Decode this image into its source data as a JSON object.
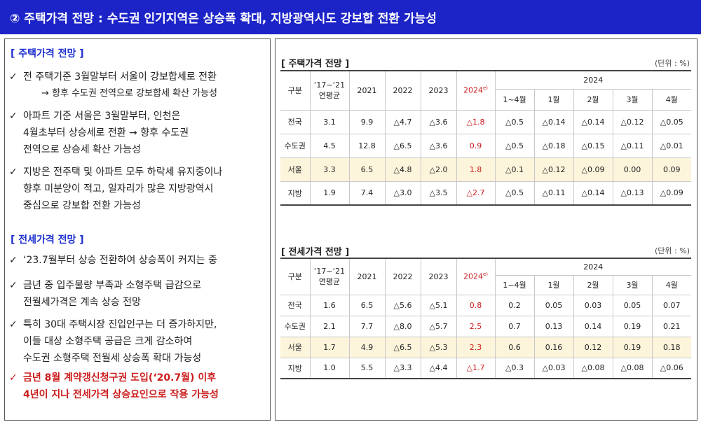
{
  "title": "② 주택가격 전망 : 수도권 인기지역은 상승폭 확대, 지방광역시도 강보합 전환 가능성",
  "left": {
    "housing_head": "[ 주택가격 전망 ]",
    "housing_bullets": [
      {
        "check": "✓",
        "l1": "전 주택기준 3월말부터 서울이 강보합세로 전환",
        "l2": "→ 향후 수도권 전역으로 강보합세 확산 가능성"
      },
      {
        "check": "✓",
        "l1": "아파트 기준 서울은 3월말부터, 인천은",
        "l2": "4월초부터 상승세로 전환  → 향후 수도권",
        "l3": "전역으로 상승세 확산 가능성"
      },
      {
        "check": "✓",
        "l1": "지방은 전주택 및 아파트 모두 하락세 유지중이나",
        "l2": "향후 미분양이 적고, 일자리가 많은 지방광역시",
        "l3": "중심으로 강보합 전환 가능성"
      }
    ],
    "jeonse_head": "[ 전세가격 전망 ]",
    "jeonse_bullets": [
      {
        "check": "✓",
        "l1": "‘23.7월부터 상승 전환하여 상승폭이 커지는 중"
      },
      {
        "check": "✓",
        "l1": "금년 중 입주물량 부족과 소형주택 급감으로",
        "l2": "전월세가격은 계속 상승 전망"
      },
      {
        "check": "✓",
        "l1": "특히 30대 주택시장 진입인구는 더 증가하지만,",
        "l2": "이들 대상 소형주택 공급은 크게 감소하여",
        "l3": "수도권 소형주택 전월세 상승폭 확대 가능성"
      },
      {
        "check": "✓",
        "l1": "금년 8월 계약갱신청구권 도입(‘20.7월) 이후",
        "l2": "4년이 지나 전세가격 상승요인으로 작용 가능성"
      }
    ]
  },
  "housing_table": {
    "title": "[ 주택가격 전망 ]",
    "unit": "(단위 : %)",
    "h_gubun": "구분",
    "h_avg_1": "‘17~‘21",
    "h_avg_2": "연평균",
    "h_2021": "2021",
    "h_2022": "2022",
    "h_2023": "2023",
    "h_2024e": "2024",
    "h_2024e_sup": "e)",
    "h_2024": "2024",
    "h_m14": "1~4월",
    "h_m1": "1월",
    "h_m2": "2월",
    "h_m3": "3월",
    "h_m4": "4월",
    "rows": [
      {
        "name": "전국",
        "avg": "3.1",
        "y2021": "9.9",
        "y2022": "△4.7",
        "y2023": "△3.6",
        "y2024e": "△1.8",
        "m14": "△0.5",
        "m1": "△0.14",
        "m2": "△0.14",
        "m3": "△0.12",
        "m4": "△0.05"
      },
      {
        "name": "수도권",
        "avg": "4.5",
        "y2021": "12.8",
        "y2022": "△6.5",
        "y2023": "△3.6",
        "y2024e": "0.9",
        "m14": "△0.5",
        "m1": "△0.18",
        "m2": "△0.15",
        "m3": "△0.11",
        "m4": "△0.01"
      },
      {
        "name": "서울",
        "avg": "3.3",
        "y2021": "6.5",
        "y2022": "△4.8",
        "y2023": "△2.0",
        "y2024e": "1.8",
        "m14": "△0.1",
        "m1": "△0.12",
        "m2": "△0.09",
        "m3": "0.00",
        "m4": "0.09"
      },
      {
        "name": "지방",
        "avg": "1.9",
        "y2021": "7.4",
        "y2022": "△3.0",
        "y2023": "△3.5",
        "y2024e": "△2.7",
        "m14": "△0.5",
        "m1": "△0.11",
        "m2": "△0.14",
        "m3": "△0.13",
        "m4": "△0.09"
      }
    ]
  },
  "jeonse_table": {
    "title": "[ 전세가격 전망 ]",
    "unit": "(단위 : %)",
    "h_gubun": "구분",
    "h_avg_1": "‘17~‘21",
    "h_avg_2": "연평균",
    "h_2021": "2021",
    "h_2022": "2022",
    "h_2023": "2023",
    "h_2024e": "2024",
    "h_2024e_sup": "e)",
    "h_2024": "2024",
    "h_m14": "1~4월",
    "h_m1": "1월",
    "h_m2": "2월",
    "h_m3": "3월",
    "h_m4": "4월",
    "rows": [
      {
        "name": "전국",
        "avg": "1.6",
        "y2021": "6.5",
        "y2022": "△5.6",
        "y2023": "△5.1",
        "y2024e": "0.8",
        "m14": "0.2",
        "m1": "0.05",
        "m2": "0.03",
        "m3": "0.05",
        "m4": "0.07"
      },
      {
        "name": "수도권",
        "avg": "2.1",
        "y2021": "7.7",
        "y2022": "△8.0",
        "y2023": "△5.7",
        "y2024e": "2.5",
        "m14": "0.7",
        "m1": "0.13",
        "m2": "0.14",
        "m3": "0.19",
        "m4": "0.21"
      },
      {
        "name": "서울",
        "avg": "1.7",
        "y2021": "4.9",
        "y2022": "△6.5",
        "y2023": "△5.3",
        "y2024e": "2.3",
        "m14": "0.6",
        "m1": "0.16",
        "m2": "0.12",
        "m3": "0.19",
        "m4": "0.18"
      },
      {
        "name": "지방",
        "avg": "1.0",
        "y2021": "5.5",
        "y2022": "△3.3",
        "y2023": "△4.4",
        "y2024e": "△1.7",
        "m14": "△0.3",
        "m1": "△0.03",
        "m2": "△0.08",
        "m3": "△0.08",
        "m4": "△0.06"
      }
    ]
  },
  "colors": {
    "title_bg": "#1c24c8",
    "section_head": "#1c2fd0",
    "highlight": "#cc1d1d",
    "seoul_row_bg": "#fdf4dc"
  }
}
